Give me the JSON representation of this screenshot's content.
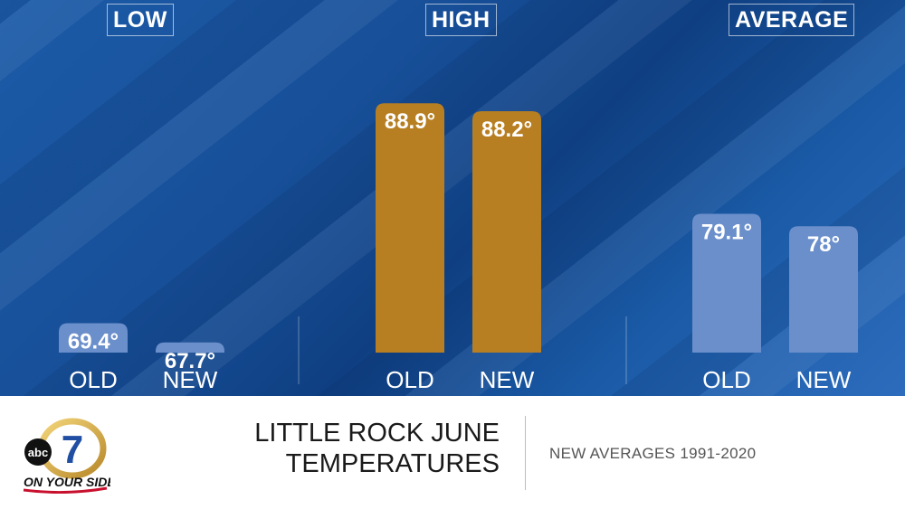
{
  "groups": [
    "LOW",
    "HIGH",
    "AVERAGE"
  ],
  "chart_data": {
    "type": "bar",
    "groups": [
      {
        "name": "LOW",
        "categories": [
          "OLD",
          "NEW"
        ],
        "values": [
          69.4,
          67.7
        ],
        "labels": [
          "69.4°",
          "67.7°"
        ]
      },
      {
        "name": "HIGH",
        "categories": [
          "OLD",
          "NEW"
        ],
        "values": [
          88.9,
          88.2
        ],
        "labels": [
          "88.9°",
          "88.2°"
        ]
      },
      {
        "name": "AVERAGE",
        "categories": [
          "OLD",
          "NEW"
        ],
        "values": [
          79.1,
          78
        ],
        "labels": [
          "79.1°",
          "78°"
        ]
      }
    ],
    "ylim": [
      66.8,
      89.4
    ],
    "colors": {
      "low": "#6b8fcb",
      "high": "#b87f22",
      "average": "#6b8fcb",
      "label": "#ffffff"
    }
  },
  "footer": {
    "title": "LITTLE ROCK JUNE TEMPERATURES",
    "subtitle": "NEW AVERAGES 1991-2020",
    "logo_text_top": "abc",
    "logo_text_bottom": "ON YOUR SIDE",
    "logo_number": "7"
  }
}
